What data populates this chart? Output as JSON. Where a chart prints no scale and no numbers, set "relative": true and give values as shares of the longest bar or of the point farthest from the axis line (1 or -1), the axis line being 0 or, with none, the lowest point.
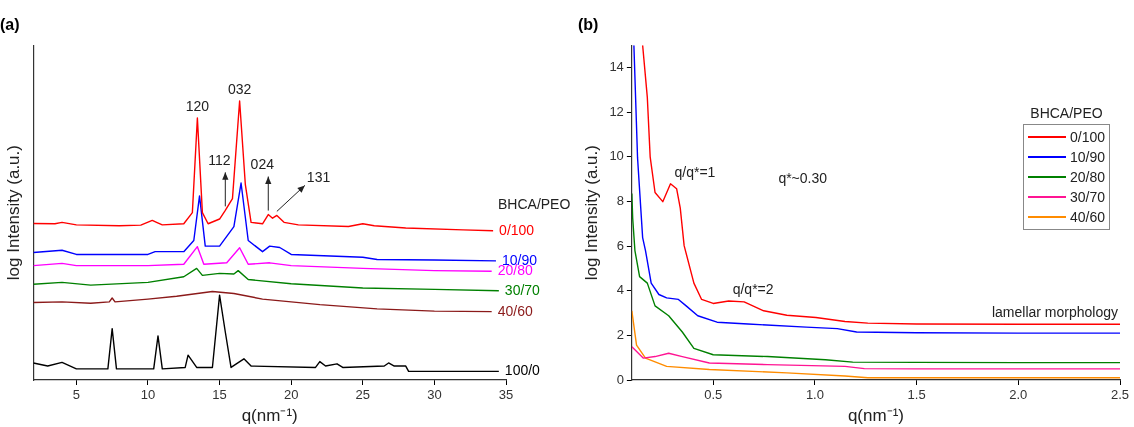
{
  "chart_data": [
    {
      "type": "line",
      "title": "(a)",
      "xlabel": "q(nm⁻¹)",
      "ylabel": "log Intensity (a.u.)",
      "relative": true,
      "xlim": [
        2,
        35
      ],
      "xticks": [
        5,
        10,
        15,
        20,
        25,
        30,
        35
      ],
      "grid": false,
      "legend": false,
      "marker": "none",
      "line_style": "solid",
      "legend_title": "BHCA/PEO",
      "series": [
        {
          "name": "0/100",
          "color": "#ff0000",
          "x": [
            2,
            3.5,
            4,
            5,
            8,
            9.5,
            10.3,
            10.6,
            11,
            12.5,
            13.1,
            13.45,
            13.8,
            14.2,
            15,
            15.4,
            15.9,
            16.4,
            16.8,
            17.2,
            18,
            18.4,
            18.7,
            19,
            19.5,
            20.5,
            24,
            25,
            25.8,
            28,
            32,
            34.1
          ],
          "values": [
            0.561,
            0.56,
            0.565,
            0.556,
            0.553,
            0.555,
            0.572,
            0.565,
            0.556,
            0.56,
            0.6,
            0.939,
            0.6,
            0.56,
            0.577,
            0.608,
            0.65,
            1.0,
            0.7,
            0.565,
            0.56,
            0.593,
            0.58,
            0.59,
            0.565,
            0.556,
            0.55,
            0.56,
            0.553,
            0.545,
            0.538,
            0.535
          ]
        },
        {
          "name": "10/90",
          "color": "#0000ff",
          "x": [
            2,
            4,
            5,
            10,
            10.5,
            12.5,
            13.2,
            13.6,
            14,
            15,
            16,
            16.5,
            17,
            18,
            18.5,
            19.2,
            20,
            25,
            26,
            30,
            34.3
          ],
          "values": [
            0.457,
            0.465,
            0.45,
            0.45,
            0.46,
            0.46,
            0.5,
            0.66,
            0.48,
            0.48,
            0.55,
            0.706,
            0.5,
            0.46,
            0.48,
            0.475,
            0.45,
            0.44,
            0.432,
            0.43,
            0.427
          ]
        },
        {
          "name": "20/80",
          "color": "#ff00ff",
          "x": [
            2,
            4,
            5,
            10,
            12.5,
            13.45,
            13.9,
            15.5,
            16.4,
            17,
            18.5,
            20,
            25,
            30,
            34
          ],
          "values": [
            0.41,
            0.418,
            0.41,
            0.41,
            0.415,
            0.478,
            0.415,
            0.42,
            0.474,
            0.415,
            0.42,
            0.41,
            0.4,
            0.392,
            0.39
          ]
        },
        {
          "name": "30/70",
          "color": "#008000",
          "x": [
            2,
            4,
            6,
            10,
            12.5,
            13.4,
            13.8,
            15,
            16,
            16.3,
            17,
            20,
            25,
            30,
            34.5
          ],
          "values": [
            0.343,
            0.35,
            0.34,
            0.35,
            0.37,
            0.4,
            0.375,
            0.382,
            0.38,
            0.392,
            0.36,
            0.345,
            0.33,
            0.325,
            0.32
          ]
        },
        {
          "name": "40/60",
          "color": "#8b1a1a",
          "x": [
            2,
            4,
            6,
            7.3,
            7.5,
            7.7,
            10,
            12,
            14.5,
            16,
            18,
            22,
            26,
            30,
            34
          ],
          "values": [
            0.278,
            0.28,
            0.275,
            0.28,
            0.294,
            0.28,
            0.29,
            0.3,
            0.317,
            0.31,
            0.29,
            0.27,
            0.255,
            0.247,
            0.245
          ]
        },
        {
          "name": "100/0",
          "color": "#000000",
          "x": [
            2,
            3,
            4,
            5,
            7.2,
            7.5,
            7.8,
            10.4,
            10.7,
            11,
            12.6,
            12.8,
            13.4,
            14.5,
            15,
            15.4,
            15.8,
            16.7,
            17.2,
            21.7,
            22,
            22.4,
            23.2,
            23.6,
            26.5,
            26.8,
            27.2,
            28,
            28.2,
            34.5
          ],
          "values": [
            0.061,
            0.05,
            0.063,
            0.04,
            0.04,
            0.184,
            0.04,
            0.04,
            0.158,
            0.04,
            0.045,
            0.089,
            0.045,
            0.045,
            0.304,
            0.172,
            0.045,
            0.076,
            0.05,
            0.045,
            0.066,
            0.05,
            0.058,
            0.045,
            0.05,
            0.061,
            0.05,
            0.05,
            0.031,
            0.031
          ]
        }
      ],
      "annotations": [
        {
          "text": "120",
          "x": 13.45,
          "y": 0.939
        },
        {
          "text": "032",
          "x": 16.4,
          "y": 1.0
        },
        {
          "text": "112",
          "x": 15.4,
          "y": 0.608
        },
        {
          "text": "024",
          "x": 18.4,
          "y": 0.593
        },
        {
          "text": "131",
          "x": 19.0,
          "y": 0.59
        }
      ]
    },
    {
      "type": "line",
      "title": "(b)",
      "xlabel": "q(nm⁻¹)",
      "ylabel": "log Intensity (a.u.)",
      "xlim": [
        0.1,
        2.5
      ],
      "xticks": [
        0.5,
        {
          "value": 1,
          "label": "1.0"
        },
        1.5,
        {
          "value": 2,
          "label": "2.0"
        },
        2.5
      ],
      "ylim": [
        0,
        15
      ],
      "yticks": [
        0,
        2,
        4,
        6,
        8,
        10,
        12,
        14
      ],
      "grid": false,
      "legend": "top right",
      "legend_title": "BHCA/PEO",
      "marker": "none",
      "line_style": "solid",
      "series": [
        {
          "name": "0/100",
          "color": "#ff0000",
          "x": [
            0.153,
            0.176,
            0.19,
            0.214,
            0.252,
            0.29,
            0.32,
            0.338,
            0.357,
            0.405,
            0.443,
            0.5,
            0.576,
            0.652,
            0.748,
            0.862,
            1.005,
            1.148,
            1.26,
            1.5,
            2.0,
            2.5
          ],
          "values": [
            15,
            12.66,
            10.0,
            8.4,
            7.99,
            8.79,
            8.57,
            7.7,
            6.02,
            4.34,
            3.61,
            3.43,
            3.54,
            3.5,
            3.1,
            2.9,
            2.8,
            2.62,
            2.55,
            2.51,
            2.5,
            2.5
          ]
        },
        {
          "name": "10/90",
          "color": "#0000ff",
          "x": [
            0.11,
            0.128,
            0.153,
            0.167,
            0.195,
            0.233,
            0.271,
            0.329,
            0.367,
            0.424,
            0.519,
            0.671,
            0.957,
            1.11,
            1.205,
            1.5,
            2.0,
            2.5
          ],
          "values": [
            15,
            9.95,
            6.38,
            5.8,
            4.34,
            3.83,
            3.68,
            3.61,
            3.32,
            2.88,
            2.59,
            2.51,
            2.37,
            2.3,
            2.15,
            2.12,
            2.1,
            2.1
          ]
        },
        {
          "name": "20/80",
          "color": "#008000",
          "x": [
            0.1,
            0.104,
            0.115,
            0.138,
            0.176,
            0.214,
            0.281,
            0.348,
            0.405,
            0.5,
            0.767,
            1.052,
            1.186,
            1.5,
            2.0,
            2.5
          ],
          "values": [
            8.36,
            7.26,
            5.8,
            4.63,
            4.34,
            3.32,
            2.88,
            2.15,
            1.42,
            1.13,
            1.05,
            0.91,
            0.8,
            0.79,
            0.78,
            0.78
          ]
        },
        {
          "name": "30/70",
          "color": "#ff1493",
          "x": [
            0.1,
            0.157,
            0.214,
            0.281,
            0.348,
            0.481,
            0.767,
            1.148,
            1.243,
            1.5,
            2.0,
            2.5
          ],
          "values": [
            1.49,
            0.98,
            1.05,
            1.2,
            1.05,
            0.76,
            0.69,
            0.61,
            0.51,
            0.5,
            0.5,
            0.5
          ]
        },
        {
          "name": "40/60",
          "color": "#ff8c00",
          "x": [
            0.1,
            0.123,
            0.167,
            0.271,
            0.481,
            0.862,
            1.148,
            1.26,
            1.5,
            2.0,
            2.5
          ],
          "values": [
            3.1,
            1.56,
            0.98,
            0.61,
            0.47,
            0.32,
            0.18,
            0.1,
            0.1,
            0.1,
            0.1
          ]
        }
      ],
      "annotations": [
        {
          "text": "q/q*=1",
          "x": 0.29,
          "y": 8.79
        },
        {
          "text": "q/q*=2",
          "x": 0.576,
          "y": 3.54
        },
        "q*~0.30",
        {
          "text": "lamellar morphology",
          "x": 2.2,
          "y": 2.5
        }
      ]
    }
  ]
}
